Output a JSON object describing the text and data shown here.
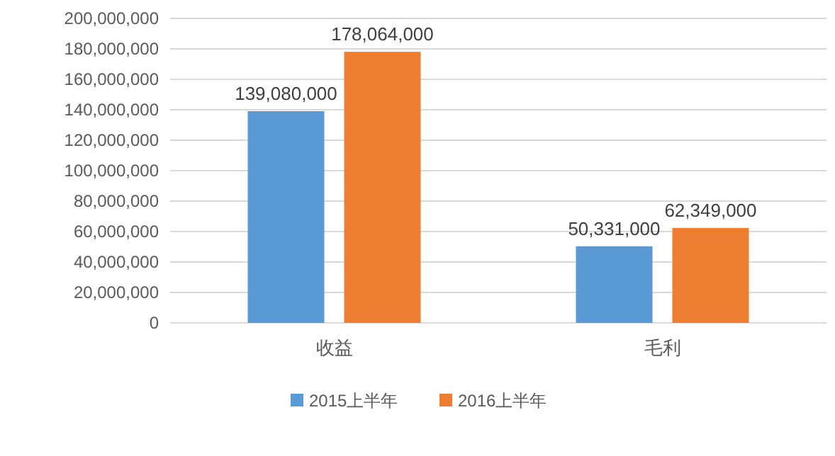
{
  "chart_data": {
    "type": "bar",
    "categories": [
      "收益",
      "毛利"
    ],
    "series": [
      {
        "name": "2015上半年",
        "color": "#5b9bd5",
        "values": [
          139080000,
          50331000
        ],
        "value_labels": [
          "139,080,000",
          "50,331,000"
        ]
      },
      {
        "name": "2016上半年",
        "color": "#ed7d31",
        "values": [
          178064000,
          62349000
        ],
        "value_labels": [
          "178,064,000",
          "62,349,000"
        ]
      }
    ],
    "ylim": [
      0,
      200000000
    ],
    "yticks": [
      {
        "value": 0,
        "label": "0"
      },
      {
        "value": 20000000,
        "label": "20,000,000"
      },
      {
        "value": 40000000,
        "label": "40,000,000"
      },
      {
        "value": 60000000,
        "label": "60,000,000"
      },
      {
        "value": 80000000,
        "label": "80,000,000"
      },
      {
        "value": 100000000,
        "label": "100,000,000"
      },
      {
        "value": 120000000,
        "label": "120,000,000"
      },
      {
        "value": 140000000,
        "label": "140,000,000"
      },
      {
        "value": 160000000,
        "label": "160,000,000"
      },
      {
        "value": 180000000,
        "label": "180,000,000"
      },
      {
        "value": 200000000,
        "label": "200,000,000"
      }
    ],
    "grid": "y",
    "legend": "bottom"
  }
}
